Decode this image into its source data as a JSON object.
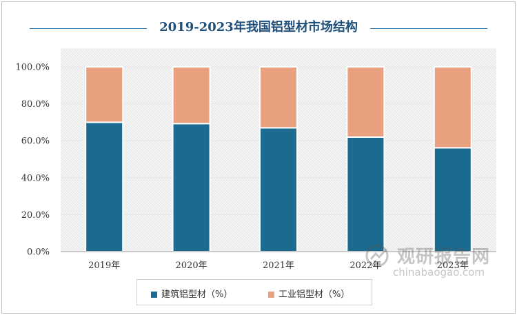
{
  "chart_data": {
    "type": "bar",
    "stacked": true,
    "title": "2019-2023年我国铝型材市场结构",
    "categories": [
      "2019年",
      "2020年",
      "2021年",
      "2022年",
      "2023年"
    ],
    "series": [
      {
        "name": "建筑铝型材（%）",
        "color": "#1b6a90",
        "values": [
          70.0,
          69.3,
          67.0,
          62.0,
          56.2
        ]
      },
      {
        "name": "工业铝型材（%）",
        "color": "#e8a07e",
        "values": [
          30.0,
          30.7,
          33.0,
          38.0,
          43.8
        ]
      }
    ],
    "yticks": [
      "0.0%",
      "20.0%",
      "40.0%",
      "60.0%",
      "80.0%",
      "100.0%"
    ],
    "ylim": [
      0,
      100
    ],
    "legend_position": "bottom"
  },
  "watermark": {
    "text": "观研报告网",
    "url": "chinabaogao.com"
  }
}
